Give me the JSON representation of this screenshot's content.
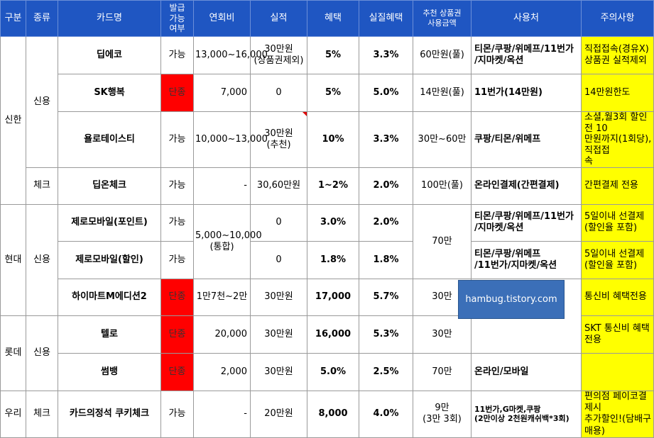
{
  "headers": [
    "구분",
    "종류",
    "카드명",
    "발급\n가능\n여부",
    "연회비",
    "실적",
    "혜택",
    "실질혜택",
    "추천 상품권\n사용금액",
    "사용처",
    "주의사항"
  ],
  "groups": {
    "shinhan": "신한",
    "hyundai": "현대",
    "lotte": "롯데",
    "woori": "우리"
  },
  "types": {
    "credit": "신용",
    "check": "체크"
  },
  "rows": [
    {
      "card": "딥에코",
      "avail": "가능",
      "fee": "13,000~16,000",
      "perf": "30만원\n(상품권제외)",
      "benefit": "5%",
      "real": "3.3%",
      "rec": "60만원(풀)",
      "use": "티몬/쿠팡/위메프/11번가\n/지마켓/옥션",
      "note": "직접접속(경유X)\n상품권 실적제외"
    },
    {
      "card": "SK행복",
      "avail": "단종",
      "fee": "7,000",
      "perf": "0",
      "benefit": "5%",
      "real": "5.0%",
      "rec": "14만원(풀)",
      "use": "11번가(14만원)",
      "note": "14만원한도"
    },
    {
      "card": "욜로테이스티",
      "avail": "가능",
      "fee": "10,000~13,000",
      "perf": "30만원\n(추천)",
      "benefit": "10%",
      "real": "3.3%",
      "rec": "30만~60만",
      "use": "쿠팡/티몬/위메프",
      "note": "소셜,월3회 할인전 10\n만원까지(1회당),직접접\n속"
    },
    {
      "card": "딥온체크",
      "avail": "가능",
      "fee": "-",
      "perf": "30,60만원",
      "benefit": "1~2%",
      "real": "2.0%",
      "rec": "100만(풀)",
      "use": "온라인결제(간편결제)",
      "note": "간편결제 전용"
    },
    {
      "card": "제로모바일(포인트)",
      "avail": "가능",
      "fee": "5,000~10,000\n(통합)",
      "perf": "0",
      "benefit": "3.0%",
      "real": "2.0%",
      "rec": "70만",
      "use": "티몬/쿠팡/위메프/11번가\n/지마켓/옥션",
      "note": "5일이내 선결제\n(할인율 포함)"
    },
    {
      "card": "제로모바일(할인)",
      "avail": "가능",
      "perf": "0",
      "benefit": "1.8%",
      "real": "1.8%",
      "use": "티몬/쿠팡/위메프\n/11번가/지마켓/옥션",
      "note": "5일이내 선결제\n(할인율 포함)"
    },
    {
      "card": "하이마트M에디션2",
      "avail": "단종",
      "fee": "1만7천~2만",
      "perf": "30만원",
      "benefit": "17,000",
      "real": "5.7%",
      "rec": "30만",
      "use": "",
      "note": "통신비 혜택전용"
    },
    {
      "card": "텔로",
      "avail": "단종",
      "fee": "20,000",
      "perf": "30만원",
      "benefit": "16,000",
      "real": "5.3%",
      "rec": "30만",
      "use": "",
      "note": "SKT 통신비 혜택전용"
    },
    {
      "card": "썸뱅",
      "avail": "단종",
      "fee": "2,000",
      "perf": "30만원",
      "benefit": "5.0%",
      "real": "2.5%",
      "rec": "70만",
      "use": "온라인/모바일",
      "note": ""
    },
    {
      "card": "카드의정석 쿠키체크",
      "avail": "가능",
      "fee": "-",
      "perf": "20만원",
      "benefit": "8,000",
      "real": "4.0%",
      "rec": "9만\n(3만 3회)",
      "use": "11번가,G마켓,쿠팡\n(2만이상 2천원캐쉬백*3회)",
      "note": "편의점 페이코결제시\n추가할인!(담배구매용)"
    }
  ],
  "watermark": "hambug.tistory.com"
}
